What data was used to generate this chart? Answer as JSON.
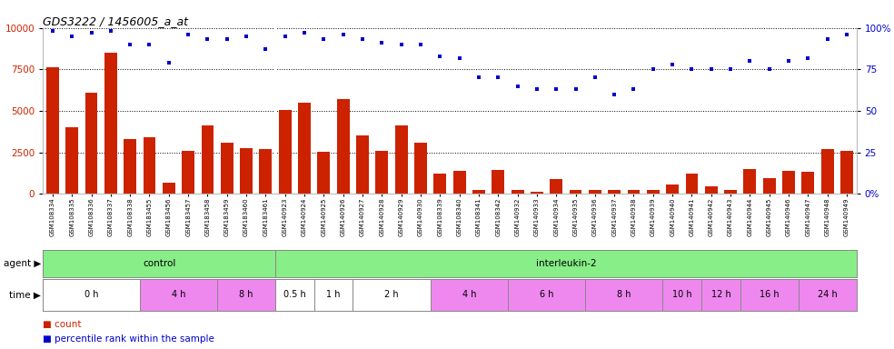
{
  "title": "GDS3222 / 1456005_a_at",
  "samples": [
    "GSM108334",
    "GSM108335",
    "GSM108336",
    "GSM108337",
    "GSM108338",
    "GSM183455",
    "GSM183456",
    "GSM183457",
    "GSM183458",
    "GSM183459",
    "GSM183460",
    "GSM183461",
    "GSM140923",
    "GSM140924",
    "GSM140925",
    "GSM140926",
    "GSM140927",
    "GSM140928",
    "GSM140929",
    "GSM140930",
    "GSM108339",
    "GSM108340",
    "GSM108341",
    "GSM108342",
    "GSM140932",
    "GSM140933",
    "GSM140934",
    "GSM140935",
    "GSM140936",
    "GSM140937",
    "GSM140938",
    "GSM140939",
    "GSM140940",
    "GSM140941",
    "GSM140942",
    "GSM140943",
    "GSM140944",
    "GSM140945",
    "GSM140946",
    "GSM140947",
    "GSM140948",
    "GSM140949"
  ],
  "counts": [
    7600,
    4000,
    6100,
    8500,
    3300,
    3400,
    650,
    2600,
    4100,
    3050,
    2750,
    2700,
    5050,
    5500,
    2550,
    5700,
    3500,
    2600,
    4100,
    3100,
    1200,
    1350,
    200,
    1450,
    200,
    100,
    900,
    200,
    200,
    200,
    200,
    200,
    550,
    1200,
    450,
    200,
    1500,
    950,
    1400,
    1300,
    2700,
    2600
  ],
  "percentiles": [
    98,
    95,
    97,
    98,
    90,
    90,
    79,
    96,
    93,
    93,
    95,
    87,
    95,
    97,
    93,
    96,
    93,
    91,
    90,
    90,
    83,
    82,
    70,
    70,
    65,
    63,
    63,
    63,
    70,
    60,
    63,
    75,
    78,
    75,
    75,
    75,
    80,
    75,
    80,
    82,
    93,
    96
  ],
  "bar_color": "#cc2200",
  "dot_color": "#0000cc",
  "ylim_left": [
    0,
    10000
  ],
  "ylim_right": [
    0,
    100
  ],
  "yticks_left": [
    0,
    2500,
    5000,
    7500,
    10000
  ],
  "yticks_right": [
    0,
    25,
    50,
    75,
    100
  ],
  "yticklabels_right": [
    "0%",
    "25",
    "50",
    "75",
    "100%"
  ],
  "bg_color": "#ffffff",
  "plot_bg_color": "#ffffff",
  "agent_groups": [
    {
      "label": "control",
      "start": 0,
      "end": 12,
      "color": "#88ee88"
    },
    {
      "label": "interleukin-2",
      "start": 12,
      "end": 42,
      "color": "#88ee88"
    }
  ],
  "time_groups": [
    {
      "label": "0 h",
      "start": 0,
      "end": 5,
      "color": "#ffffff"
    },
    {
      "label": "4 h",
      "start": 5,
      "end": 9,
      "color": "#ee88ee"
    },
    {
      "label": "8 h",
      "start": 9,
      "end": 12,
      "color": "#ee88ee"
    },
    {
      "label": "0.5 h",
      "start": 12,
      "end": 14,
      "color": "#ffffff"
    },
    {
      "label": "1 h",
      "start": 14,
      "end": 16,
      "color": "#ffffff"
    },
    {
      "label": "2 h",
      "start": 16,
      "end": 20,
      "color": "#ffffff"
    },
    {
      "label": "4 h",
      "start": 20,
      "end": 24,
      "color": "#ee88ee"
    },
    {
      "label": "6 h",
      "start": 24,
      "end": 28,
      "color": "#ee88ee"
    },
    {
      "label": "8 h",
      "start": 28,
      "end": 32,
      "color": "#ee88ee"
    },
    {
      "label": "10 h",
      "start": 32,
      "end": 34,
      "color": "#ee88ee"
    },
    {
      "label": "12 h",
      "start": 34,
      "end": 36,
      "color": "#ee88ee"
    },
    {
      "label": "16 h",
      "start": 36,
      "end": 39,
      "color": "#ee88ee"
    },
    {
      "label": "24 h",
      "start": 39,
      "end": 42,
      "color": "#ee88ee"
    }
  ],
  "separator_idx": 11.5,
  "label_fontsize": 7.5,
  "tick_fontsize": 5.0,
  "ytick_fontsize": 7.5,
  "title_fontsize": 9.0
}
